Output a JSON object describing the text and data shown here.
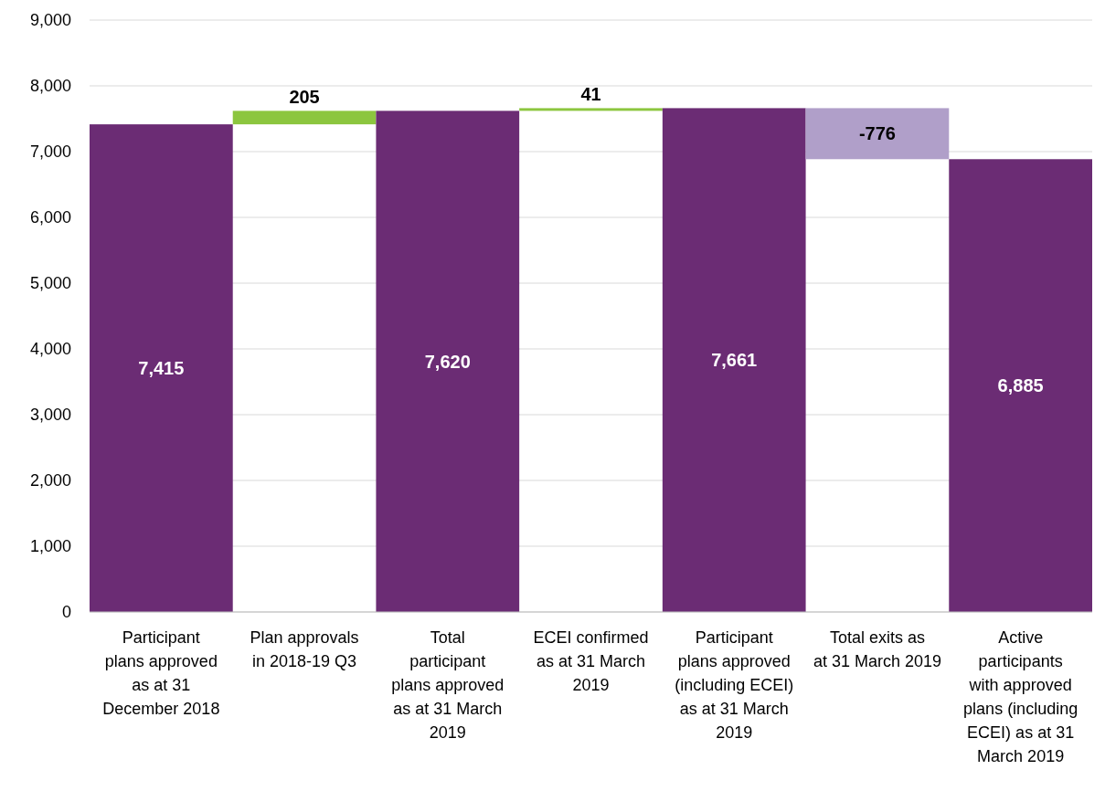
{
  "chart_data": {
    "type": "bar",
    "categories": [
      "Participant plans approved as at 31 December 2018",
      "Plan approvals in 2018-19 Q3",
      "Total participant plans approved as at 31 March 2019",
      "ECEI confirmed as at 31 March 2019",
      "Participant plans approved (including ECEI) as at 31 March 2019",
      "Total exits as at 31 March 2019",
      "Active participants with approved plans (including ECEI) as at 31 March 2019"
    ],
    "values": [
      7415,
      205,
      7620,
      41,
      7661,
      -776,
      6885
    ],
    "base": [
      0,
      7415,
      0,
      7620,
      0,
      7661,
      0
    ],
    "colors": [
      "#6b2c74",
      "#8cc63f",
      "#6b2c74",
      "#8cc63f",
      "#6b2c74",
      "#b09fc9",
      "#6b2c74"
    ],
    "value_labels": [
      "7,415",
      "205",
      "7,620",
      "41",
      "7,661",
      "-776",
      "6,885"
    ],
    "ylim": [
      0,
      9000
    ],
    "yticks": [
      {
        "value": 0,
        "label": "0"
      },
      {
        "value": 1000,
        "label": "1,000"
      },
      {
        "value": 2000,
        "label": "2,000"
      },
      {
        "value": 3000,
        "label": "3,000"
      },
      {
        "value": 4000,
        "label": "4,000"
      },
      {
        "value": 5000,
        "label": "5,000"
      },
      {
        "value": 6000,
        "label": "6,000"
      },
      {
        "value": 7000,
        "label": "7,000"
      },
      {
        "value": 8000,
        "label": "8,000"
      },
      {
        "value": 9000,
        "label": "9,000"
      }
    ],
    "grid": "y"
  }
}
